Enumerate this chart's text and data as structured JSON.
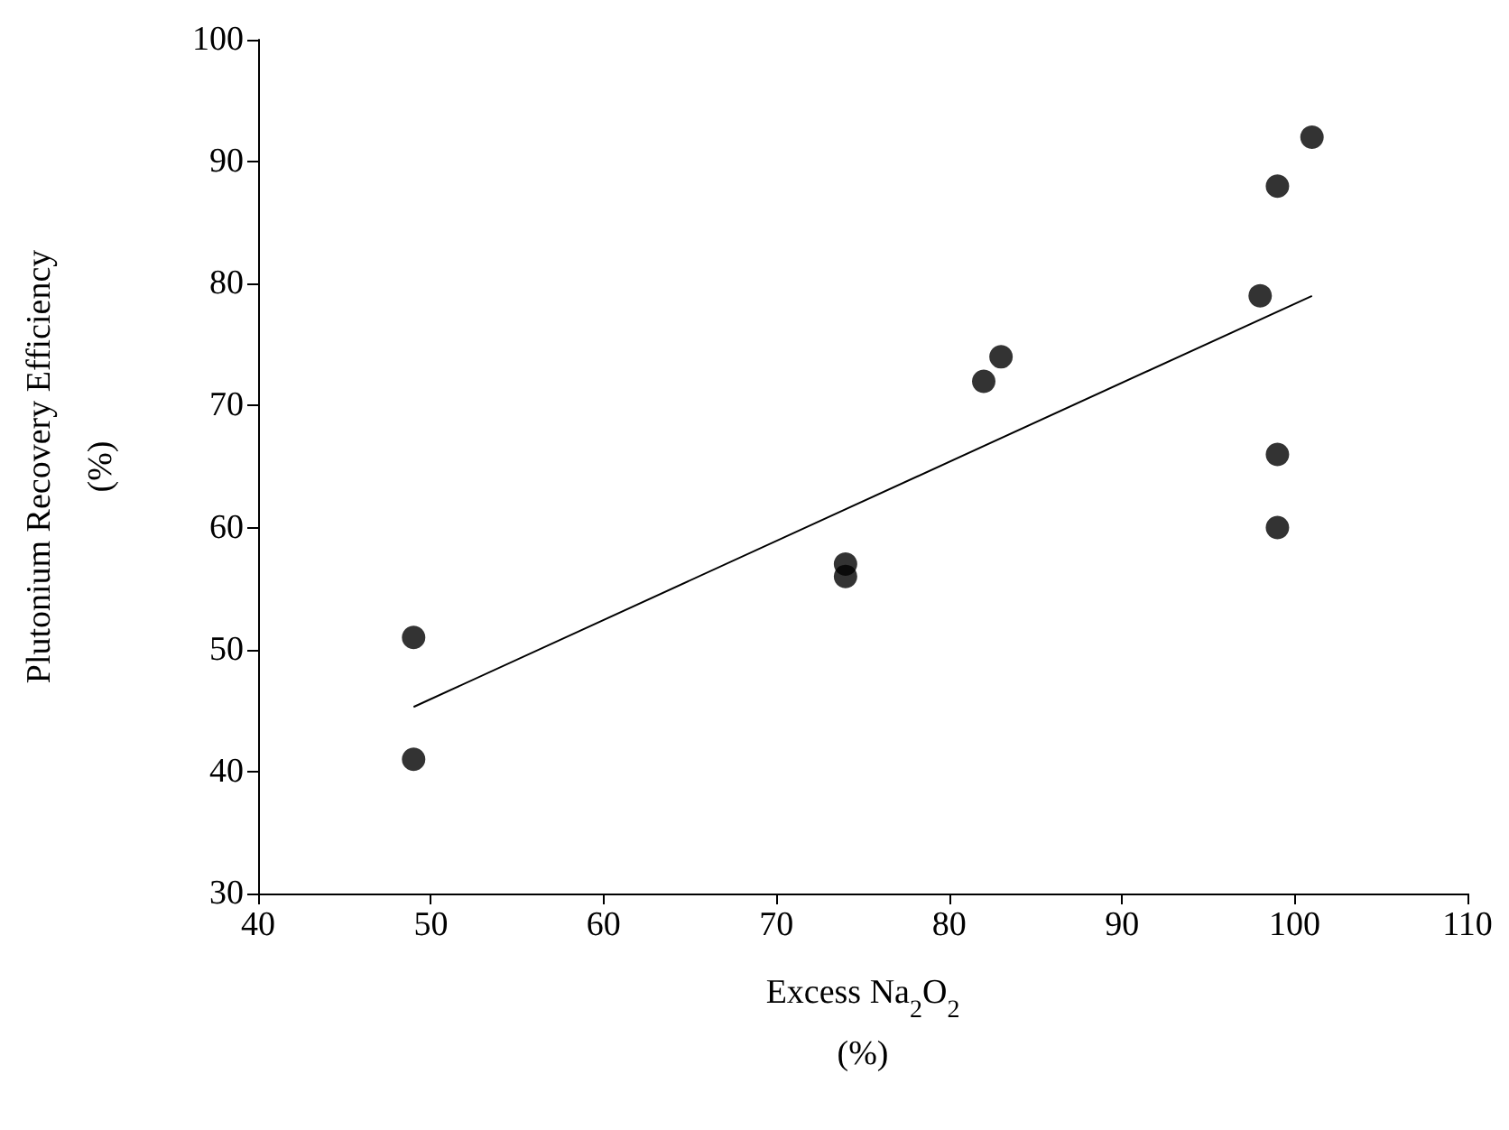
{
  "chart_data": {
    "type": "scatter",
    "xlabel": "Excess Na$_{2}$O$_{2}$\n(%)",
    "ylabel": "Plutonium Recovery Efficiency\n(%)",
    "xlim": [
      40,
      110
    ],
    "xticks": [
      40,
      50,
      60,
      70,
      80,
      90,
      100,
      110
    ],
    "ylim": [
      30,
      100
    ],
    "yticks": [
      30,
      40,
      50,
      60,
      70,
      80,
      90,
      100
    ],
    "grid": false,
    "series": [
      {
        "marker": "circle",
        "color": "#000000",
        "x": [
          49,
          49,
          74,
          74,
          82,
          83,
          98,
          99,
          101,
          99,
          99
        ],
        "values": [
          51,
          41,
          57,
          56,
          72,
          74,
          79,
          88,
          92,
          66,
          60
        ]
      },
      {
        "type": "line",
        "marker": "none",
        "line_style": "solid",
        "color": "#000000",
        "x": [
          49,
          101
        ],
        "values": [
          45.3,
          79
        ]
      }
    ]
  }
}
